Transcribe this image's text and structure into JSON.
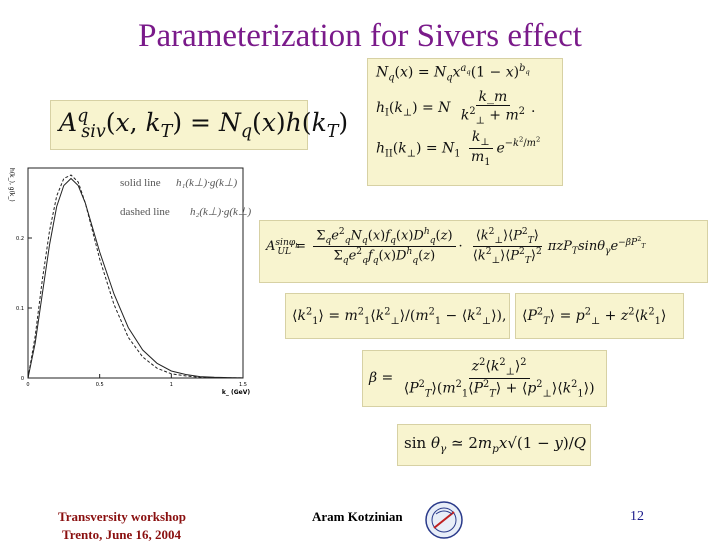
{
  "slide": {
    "title": "Parameterization for Sivers effect",
    "page_number": "12"
  },
  "footer": {
    "workshop": "Transversity workshop",
    "location_date": "Trento, June 16, 2004",
    "author": "Aram Kotzinian"
  },
  "chart": {
    "legend_solid": "solid line",
    "legend_dashed": "dashed line",
    "xlabel": "k_ (GeV)",
    "ylabel": "h(k_), g(k_)",
    "xticks": [
      "0",
      "0.5",
      "1",
      "1.5"
    ],
    "yticks": [
      "0",
      "0.1",
      "0.2"
    ]
  },
  "chart_data": {
    "type": "line",
    "xlabel": "k_ (GeV)",
    "ylabel": "h(k_), g(k_)",
    "xlim": [
      0,
      1.5
    ],
    "ylim": [
      0,
      0.3
    ],
    "series": [
      {
        "name": "solid line",
        "style": "solid",
        "x": [
          0,
          0.05,
          0.1,
          0.15,
          0.2,
          0.25,
          0.3,
          0.35,
          0.4,
          0.45,
          0.5,
          0.6,
          0.7,
          0.8,
          0.9,
          1.0,
          1.1,
          1.2,
          1.3,
          1.4,
          1.5
        ],
        "y": [
          0,
          0.05,
          0.12,
          0.19,
          0.245,
          0.275,
          0.285,
          0.275,
          0.25,
          0.215,
          0.18,
          0.12,
          0.072,
          0.04,
          0.021,
          0.01,
          0.005,
          0.002,
          0.001,
          0.0005,
          0.0002
        ]
      },
      {
        "name": "dashed line",
        "style": "dashed",
        "x": [
          0,
          0.05,
          0.1,
          0.15,
          0.2,
          0.25,
          0.3,
          0.35,
          0.4,
          0.45,
          0.5,
          0.6,
          0.7,
          0.8,
          0.9,
          1.0,
          1.1,
          1.2,
          1.3,
          1.4,
          1.5
        ],
        "y": [
          0,
          0.06,
          0.14,
          0.21,
          0.26,
          0.285,
          0.29,
          0.28,
          0.25,
          0.21,
          0.17,
          0.105,
          0.058,
          0.03,
          0.014,
          0.006,
          0.003,
          0.001,
          0.0005,
          0.0002,
          0.0001
        ]
      }
    ]
  }
}
